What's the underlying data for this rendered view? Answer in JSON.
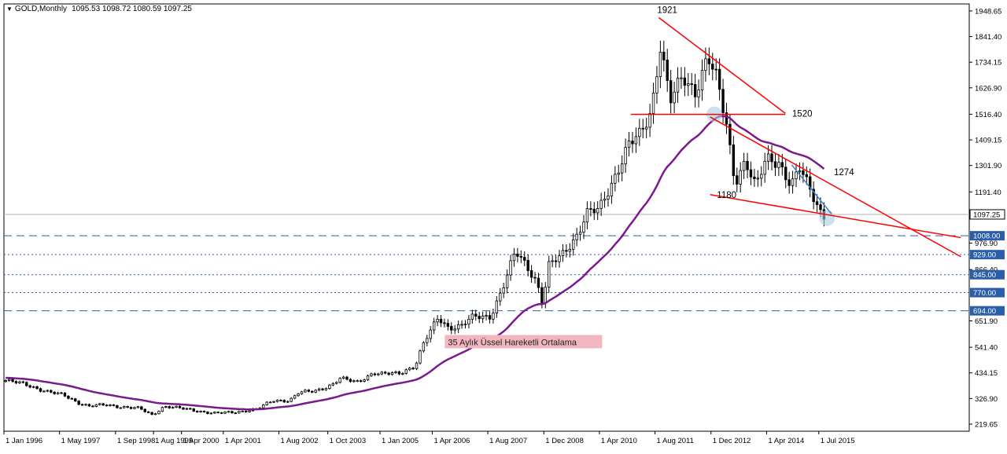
{
  "window": {
    "symbol": "GOLD,Monthly",
    "ohlc": "1095.53 1098.72 1080.59 1097.25"
  },
  "colors": {
    "candle": "#000000",
    "ema": "#7a1a8c",
    "trend": "#ff0000",
    "wedge_blue": "#3b7fd9",
    "level_line": "#2a5ea8",
    "label_bg": "#2a5ea8",
    "note_bg": "#f2b6bf",
    "highlight": "#a8cfe3"
  },
  "chart_data": {
    "type": "candlestick",
    "title": "GOLD,Monthly",
    "ylim": [
      200,
      2000
    ],
    "y_ticks": [
      "1948.65",
      "1841.40",
      "1734.15",
      "1626.90",
      "1516.40",
      "1409.15",
      "1301.90",
      "1191.40",
      "976.90",
      "866.40",
      "651.90",
      "541.40",
      "434.15",
      "326.90",
      "219.65"
    ],
    "x_ticks": [
      "1 Jan 1996",
      "1 May 1997",
      "1 Sep 1998",
      "1 Aug 1999",
      "1 Apr 2000",
      "1 Apr 2001",
      "1 Aug 2002",
      "1 Oct 2003",
      "1 Jan 2005",
      "1 Apr 2006",
      "1 Aug 2007",
      "1 Dec 2008",
      "1 Apr 2010",
      "1 Aug 2011",
      "1 Dec 2012",
      "1 Apr 2014",
      "1 Jul 2015"
    ],
    "current_price": "1097.25",
    "support_levels": [
      {
        "value": 1008,
        "label": "1008.00"
      },
      {
        "value": 929,
        "label": "929.00"
      },
      {
        "value": 845,
        "label": "845.00"
      },
      {
        "value": 770,
        "label": "770.00"
      },
      {
        "value": 694,
        "label": "694.00"
      }
    ],
    "annotations": [
      {
        "text": "1921",
        "x": 2011.67,
        "y": 1921
      },
      {
        "text": "1520",
        "x": 2014.9,
        "y": 1520
      },
      {
        "text": "1180",
        "x": 2013.1,
        "y": 1180
      },
      {
        "text": "1274",
        "x": 2015.9,
        "y": 1274
      }
    ],
    "note": "35 Aylık Üssel Hareketli Ortalama",
    "trend_lines": [
      {
        "from": [
          2011.67,
          1921
        ],
        "to": [
          2014.7,
          1520
        ]
      },
      {
        "from": [
          2011.0,
          1516
        ],
        "to": [
          2014.7,
          1516
        ]
      },
      {
        "from": [
          2012.9,
          1505
        ],
        "to": [
          2018.9,
          920
        ]
      },
      {
        "from": [
          2012.9,
          1180
        ],
        "to": [
          2018.9,
          1000
        ]
      }
    ],
    "wedge_line": {
      "from": [
        2014.85,
        1305
      ],
      "to": [
        2015.8,
        1100
      ]
    },
    "ema_period": 35,
    "prices": [
      [
        1996.0,
        402
      ],
      [
        1996.5,
        385
      ],
      [
        1997.0,
        355
      ],
      [
        1997.4,
        340
      ],
      [
        1997.8,
        305
      ],
      [
        1998.0,
        295
      ],
      [
        1998.4,
        300
      ],
      [
        1998.8,
        292
      ],
      [
        1999.2,
        285
      ],
      [
        1999.5,
        258
      ],
      [
        1999.8,
        295
      ],
      [
        2000.0,
        290
      ],
      [
        2000.4,
        280
      ],
      [
        2000.8,
        270
      ],
      [
        2001.0,
        265
      ],
      [
        2001.4,
        268
      ],
      [
        2001.8,
        278
      ],
      [
        2002.0,
        282
      ],
      [
        2002.4,
        318
      ],
      [
        2002.8,
        320
      ],
      [
        2003.0,
        350
      ],
      [
        2003.4,
        358
      ],
      [
        2003.8,
        385
      ],
      [
        2004.0,
        410
      ],
      [
        2004.4,
        395
      ],
      [
        2004.8,
        435
      ],
      [
        2005.0,
        428
      ],
      [
        2005.4,
        432
      ],
      [
        2005.8,
        465
      ],
      [
        2006.0,
        555
      ],
      [
        2006.35,
        665
      ],
      [
        2006.6,
        625
      ],
      [
        2006.9,
        630
      ],
      [
        2007.2,
        668
      ],
      [
        2007.6,
        672
      ],
      [
        2007.9,
        790
      ],
      [
        2008.2,
        940
      ],
      [
        2008.45,
        890
      ],
      [
        2008.7,
        820
      ],
      [
        2008.85,
        725
      ],
      [
        2009.0,
        880
      ],
      [
        2009.3,
        925
      ],
      [
        2009.7,
        1020
      ],
      [
        2009.9,
        1100
      ],
      [
        2010.2,
        1115
      ],
      [
        2010.5,
        1230
      ],
      [
        2010.9,
        1385
      ],
      [
        2011.2,
        1430
      ],
      [
        2011.45,
        1535
      ],
      [
        2011.67,
        1815
      ],
      [
        2011.9,
        1570
      ],
      [
        2012.2,
        1665
      ],
      [
        2012.5,
        1615
      ],
      [
        2012.8,
        1760
      ],
      [
        2013.0,
        1665
      ],
      [
        2013.25,
        1470
      ],
      [
        2013.45,
        1235
      ],
      [
        2013.7,
        1325
      ],
      [
        2013.95,
        1205
      ],
      [
        2014.2,
        1330
      ],
      [
        2014.5,
        1320
      ],
      [
        2014.8,
        1215
      ],
      [
        2015.0,
        1285
      ],
      [
        2015.3,
        1185
      ],
      [
        2015.55,
        1095
      ],
      [
        2015.8,
        1097
      ]
    ]
  }
}
